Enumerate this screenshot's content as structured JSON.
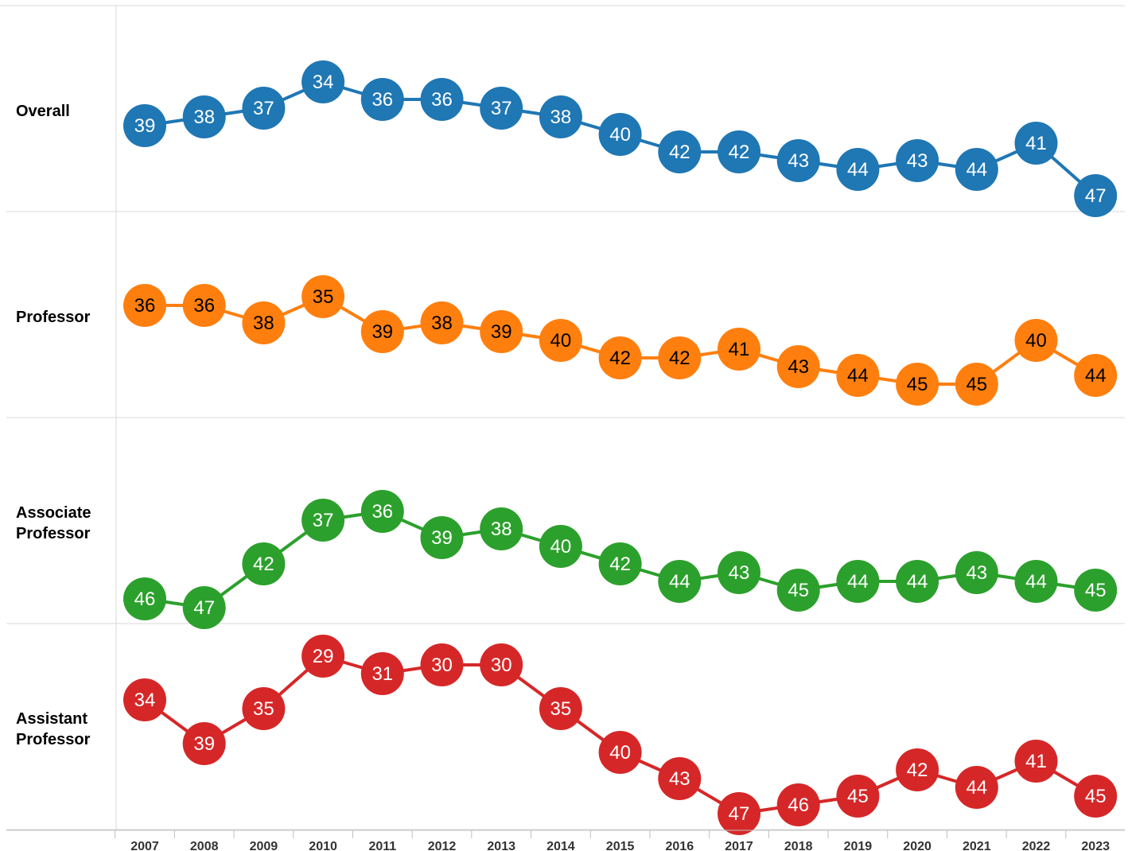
{
  "chart_data": {
    "type": "line",
    "layout": "small-multiples",
    "x": [
      "2007",
      "2008",
      "2009",
      "2010",
      "2011",
      "2012",
      "2013",
      "2014",
      "2015",
      "2016",
      "2017",
      "2018",
      "2019",
      "2020",
      "2021",
      "2022",
      "2023"
    ],
    "y_direction": "inverted",
    "ylim": [
      28,
      48
    ],
    "series": [
      {
        "name": "Overall",
        "color": "#1f77b4",
        "label_color": "#ffffff",
        "values": [
          39,
          38,
          37,
          34,
          36,
          36,
          37,
          38,
          40,
          42,
          42,
          43,
          44,
          43,
          44,
          41,
          47
        ]
      },
      {
        "name": "Professor",
        "color": "#ff7f0e",
        "label_color": "#000000",
        "values": [
          36,
          36,
          38,
          35,
          39,
          38,
          39,
          40,
          42,
          42,
          41,
          43,
          44,
          45,
          45,
          40,
          44
        ]
      },
      {
        "name": "Associate Professor",
        "color": "#2ca02c",
        "label_color": "#ffffff",
        "values": [
          46,
          47,
          42,
          37,
          36,
          39,
          38,
          40,
          42,
          44,
          43,
          45,
          44,
          44,
          43,
          44,
          45
        ]
      },
      {
        "name": "Assistant Professor",
        "color": "#d62728",
        "label_color": "#ffffff",
        "values": [
          34,
          39,
          35,
          29,
          31,
          30,
          30,
          35,
          40,
          43,
          47,
          46,
          45,
          42,
          44,
          41,
          45
        ]
      }
    ],
    "grid": false,
    "legend": "none"
  }
}
